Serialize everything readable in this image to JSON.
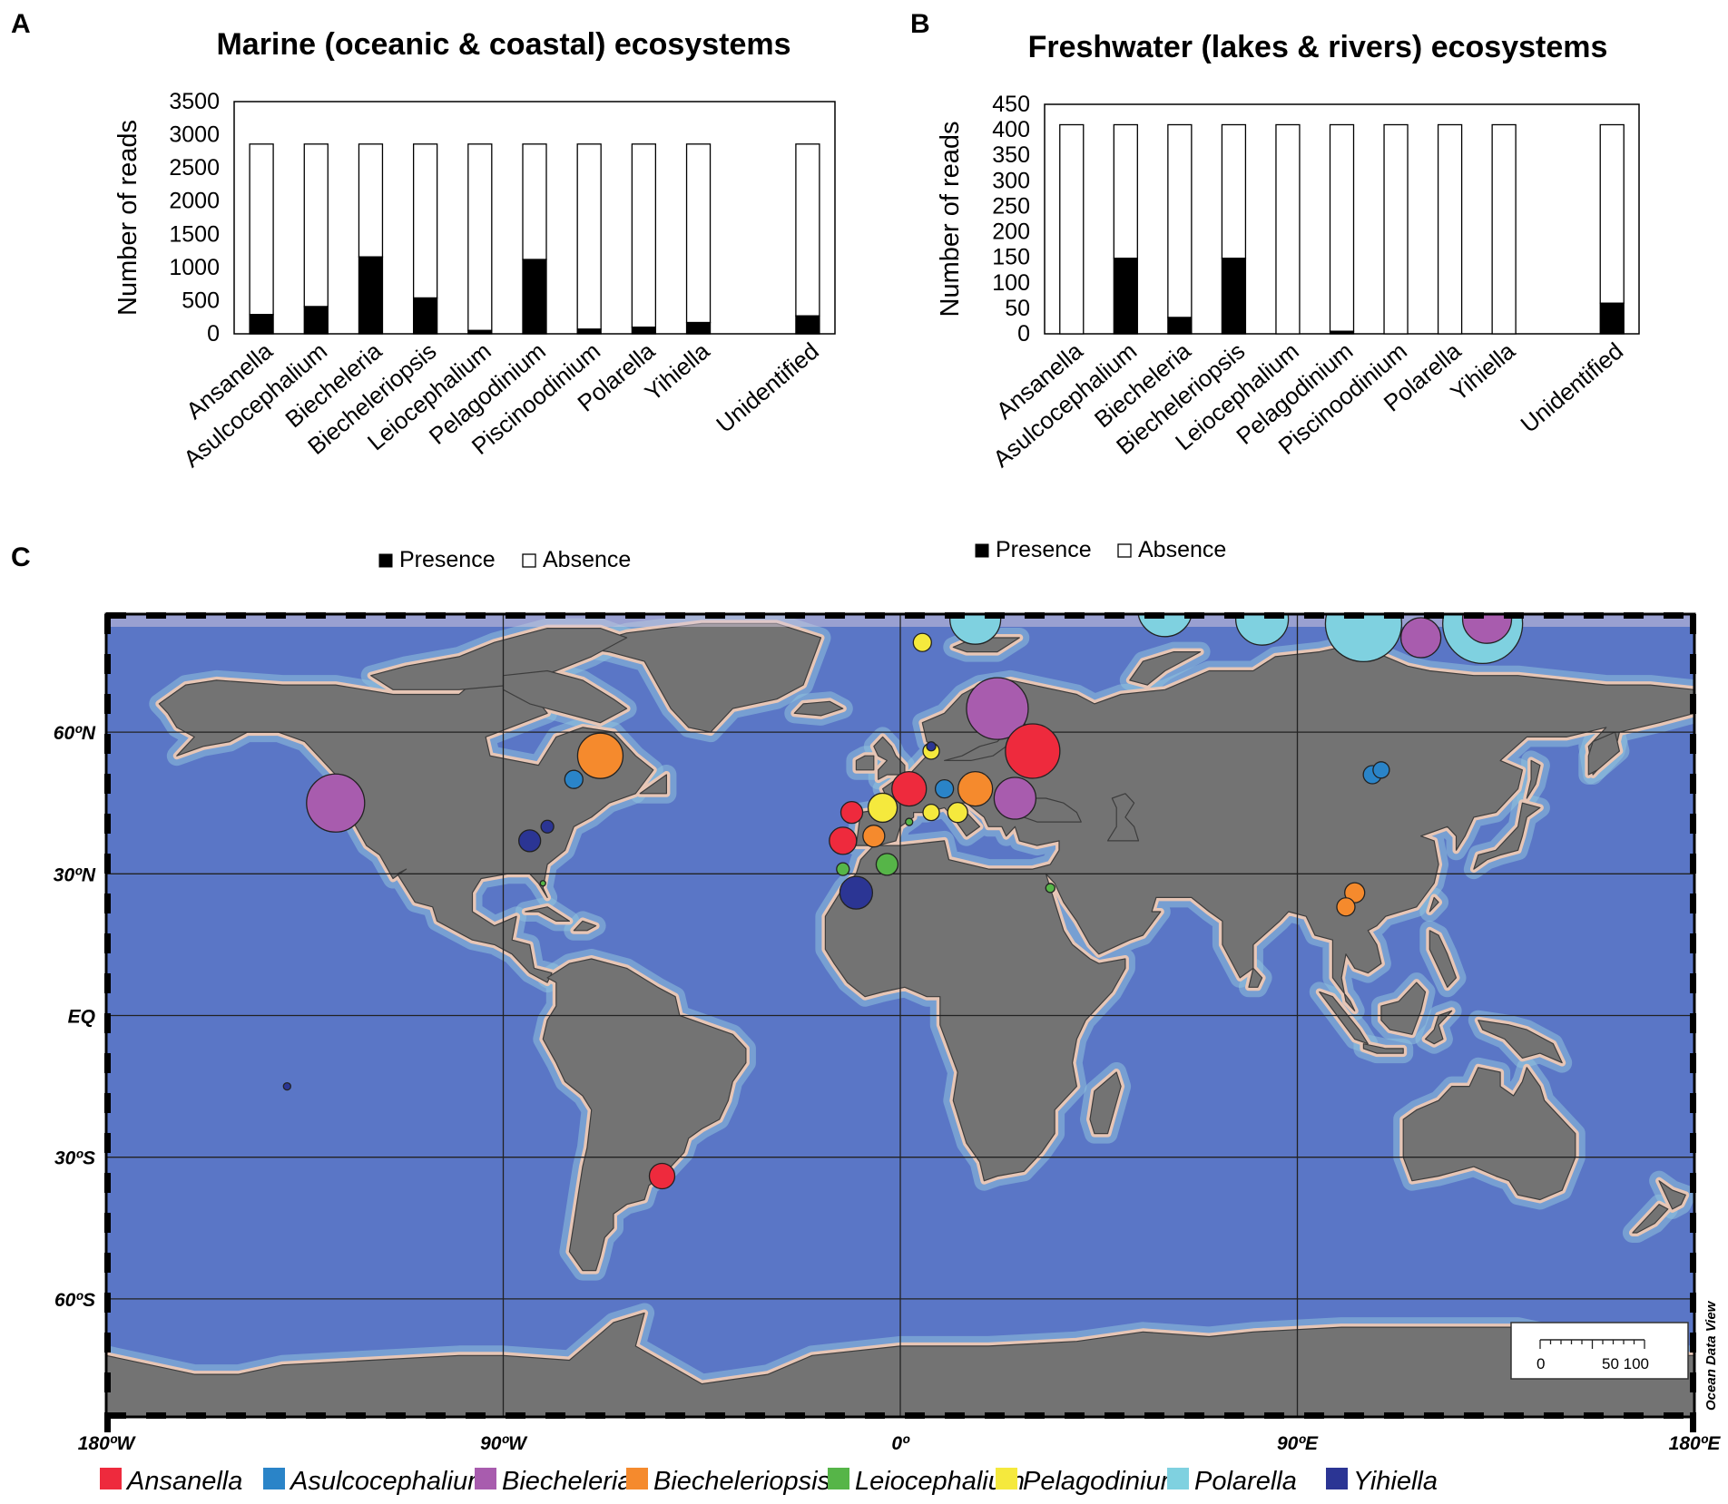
{
  "panels": {
    "a": "A",
    "b": "B",
    "c": "C"
  },
  "colors": {
    "presence": "#000000",
    "absence": "#ffffff",
    "ocean": "#5a76c6",
    "shelf": "#8fc2dd",
    "land": "#737373",
    "coast": "#e7c6b6",
    "grid": "#222222"
  },
  "chart_data": [
    {
      "type": "bar",
      "stacked": true,
      "title": "Marine (oceanic & coastal) ecosystems",
      "ylabel": "Number of reads",
      "xlabel": "",
      "ylim": [
        0,
        3500
      ],
      "yticks": [
        0,
        500,
        1000,
        1500,
        2000,
        2500,
        3000,
        3500
      ],
      "categories": [
        "Ansanella",
        "Asulcocephalium",
        "Biecheleria",
        "Biecheleriopsis",
        "Leiocephalium",
        "Pelagodinium",
        "Piscinoodinium",
        "Polarella",
        "Yihiella",
        "Unidentified"
      ],
      "slots": [
        0,
        1,
        2,
        3,
        4,
        5,
        6,
        7,
        8,
        10
      ],
      "series": [
        {
          "name": "Presence",
          "values": [
            290,
            410,
            1160,
            540,
            50,
            1120,
            70,
            100,
            170,
            270
          ]
        },
        {
          "name": "Absence",
          "values": [
            2570,
            2450,
            1700,
            2320,
            2810,
            1740,
            2790,
            2760,
            2690,
            2590
          ]
        }
      ],
      "legend": "bottom"
    },
    {
      "type": "bar",
      "stacked": true,
      "title": "Freshwater (lakes & rivers) ecosystems",
      "ylabel": "Number of reads",
      "xlabel": "",
      "ylim": [
        0,
        450
      ],
      "yticks": [
        0,
        50,
        100,
        150,
        200,
        250,
        300,
        350,
        400,
        450
      ],
      "categories": [
        "Ansanella",
        "Asulcocephalium",
        "Biecheleria",
        "Biecheleriopsis",
        "Leiocephalium",
        "Pelagodinium",
        "Piscinoodinium",
        "Polarella",
        "Yihiella",
        "Unidentified"
      ],
      "slots": [
        0,
        1,
        2,
        3,
        4,
        5,
        6,
        7,
        8,
        10
      ],
      "series": [
        {
          "name": "Presence",
          "values": [
            0,
            148,
            32,
            148,
            0,
            5,
            0,
            0,
            0,
            60
          ]
        },
        {
          "name": "Absence",
          "values": [
            410,
            262,
            378,
            262,
            410,
            405,
            410,
            410,
            410,
            350
          ]
        }
      ],
      "legend": "bottom"
    },
    {
      "type": "scatter",
      "title": "",
      "x_ticks": [
        "180ºW",
        "90ºW",
        "0º",
        "90ºE",
        "180ºE"
      ],
      "y_ticks": [
        "60ºN",
        "30ºN",
        "EQ",
        "30ºS",
        "60ºS"
      ],
      "credit": "Ocean Data View",
      "scale_labels": [
        "0",
        "50 100"
      ],
      "genera": [
        {
          "name": "Ansanella",
          "color": "#ee2a3d"
        },
        {
          "name": "Asulcocephalium",
          "color": "#2a84c8"
        },
        {
          "name": "Biecheleria",
          "color": "#a85cae"
        },
        {
          "name": "Biecheleriopsis",
          "color": "#f58a2d"
        },
        {
          "name": "Leiocephalium",
          "color": "#56b548"
        },
        {
          "name": "Pelagodinium",
          "color": "#f5e93d"
        },
        {
          "name": "Polarella",
          "color": "#7fd1e0"
        },
        {
          "name": "Yihiella",
          "color": "#2b3594"
        }
      ],
      "points": [
        {
          "lon": 17,
          "lat": 84,
          "size": 28,
          "genus": 6
        },
        {
          "lon": 60,
          "lat": 86,
          "size": 30,
          "genus": 6
        },
        {
          "lon": 82,
          "lat": 84,
          "size": 29,
          "genus": 6
        },
        {
          "lon": 105,
          "lat": 83,
          "size": 42,
          "genus": 6
        },
        {
          "lon": 132,
          "lat": 83,
          "size": 44,
          "genus": 6
        },
        {
          "lon": 118,
          "lat": 80,
          "size": 22,
          "genus": 2
        },
        {
          "lon": 133,
          "lat": 84,
          "size": 27,
          "genus": 2
        },
        {
          "lon": 5,
          "lat": 79,
          "size": 10,
          "genus": 5
        },
        {
          "lon": 22,
          "lat": 65,
          "size": 34,
          "genus": 2
        },
        {
          "lon": 30,
          "lat": 56,
          "size": 30,
          "genus": 0
        },
        {
          "lon": 7,
          "lat": 56,
          "size": 9,
          "genus": 5
        },
        {
          "lon": 7,
          "lat": 57,
          "size": 5,
          "genus": 7
        },
        {
          "lon": 2,
          "lat": 48,
          "size": 19,
          "genus": 0
        },
        {
          "lon": 10,
          "lat": 48,
          "size": 10,
          "genus": 1
        },
        {
          "lon": 17,
          "lat": 48,
          "size": 19,
          "genus": 3
        },
        {
          "lon": 26,
          "lat": 46,
          "size": 23,
          "genus": 2
        },
        {
          "lon": -4,
          "lat": 44,
          "size": 16,
          "genus": 5
        },
        {
          "lon": 7,
          "lat": 43,
          "size": 9,
          "genus": 5
        },
        {
          "lon": 13,
          "lat": 43,
          "size": 11,
          "genus": 5
        },
        {
          "lon": -11,
          "lat": 43,
          "size": 12,
          "genus": 0
        },
        {
          "lon": -13,
          "lat": 37,
          "size": 15,
          "genus": 0
        },
        {
          "lon": -6,
          "lat": 38,
          "size": 12,
          "genus": 3
        },
        {
          "lon": 2,
          "lat": 41,
          "size": 4,
          "genus": 4
        },
        {
          "lon": -3,
          "lat": 32,
          "size": 12,
          "genus": 4
        },
        {
          "lon": -13,
          "lat": 31,
          "size": 7,
          "genus": 4
        },
        {
          "lon": -10,
          "lat": 26,
          "size": 18,
          "genus": 7
        },
        {
          "lon": 34,
          "lat": 27,
          "size": 5,
          "genus": 4
        },
        {
          "lon": -68,
          "lat": 55,
          "size": 25,
          "genus": 3
        },
        {
          "lon": -74,
          "lat": 50,
          "size": 10,
          "genus": 1
        },
        {
          "lon": -80,
          "lat": 40,
          "size": 7,
          "genus": 7
        },
        {
          "lon": -84,
          "lat": 37,
          "size": 12,
          "genus": 7
        },
        {
          "lon": -128,
          "lat": 45,
          "size": 32,
          "genus": 2
        },
        {
          "lon": -81,
          "lat": 28,
          "size": 3,
          "genus": 4
        },
        {
          "lon": -139,
          "lat": -15,
          "size": 4,
          "genus": 7
        },
        {
          "lon": -54,
          "lat": -34,
          "size": 14,
          "genus": 0
        },
        {
          "lon": 107,
          "lat": 51,
          "size": 10,
          "genus": 1
        },
        {
          "lon": 109,
          "lat": 52,
          "size": 9,
          "genus": 1
        },
        {
          "lon": 101,
          "lat": 23,
          "size": 10,
          "genus": 3
        },
        {
          "lon": 103,
          "lat": 26,
          "size": 11,
          "genus": 3
        }
      ]
    }
  ]
}
